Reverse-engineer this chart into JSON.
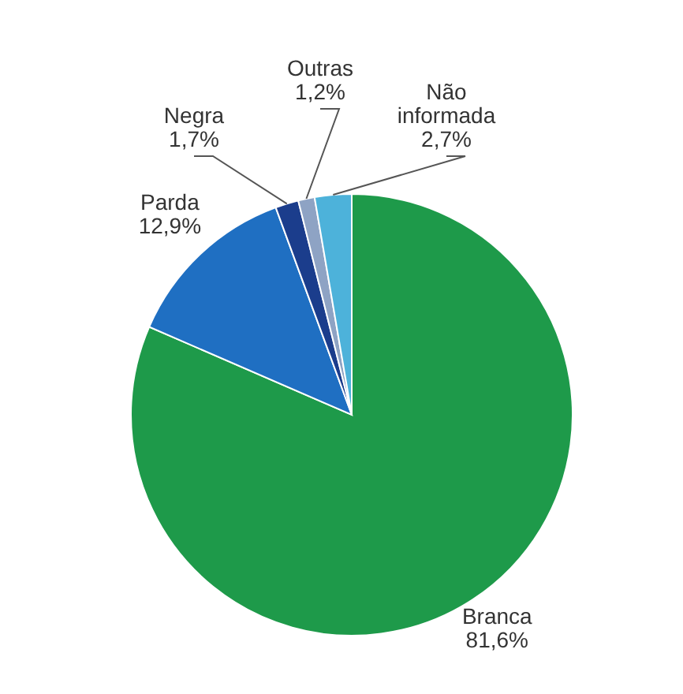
{
  "chart_data": {
    "type": "pie",
    "categories": [
      "Branca",
      "Parda",
      "Negra",
      "Outras",
      "Não informada"
    ],
    "values": [
      81.6,
      12.9,
      1.7,
      1.2,
      2.7
    ],
    "value_labels": [
      "81,6%",
      "12,9%",
      "1,7%",
      "1,2%",
      "2,7%"
    ],
    "colors": [
      "#1e9a4a",
      "#1f6fc2",
      "#1b3d8c",
      "#8ea3c4",
      "#4db2da"
    ]
  }
}
